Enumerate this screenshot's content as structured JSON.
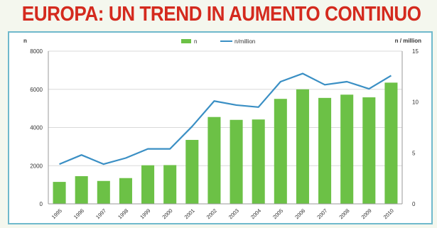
{
  "title": "EUROPA: UN TREND IN AUMENTO CONTINUO",
  "colors": {
    "title": "#d42a1e",
    "bar": "#6cc146",
    "line": "#3a8fc4",
    "frame": "#6fb9cc",
    "axis_text": "#333333"
  },
  "chart_data": {
    "type": "bar",
    "title": "",
    "ylabel": "n",
    "y2label": "n / million",
    "ylim": [
      0,
      8000
    ],
    "y2lim": [
      0,
      15
    ],
    "yticks": [
      "0",
      "2000",
      "4000",
      "6000",
      "8000"
    ],
    "y2ticks": [
      "0",
      "5",
      "10",
      "15"
    ],
    "grid": true,
    "legend_position": "top-center",
    "categories": [
      "1995",
      "1996",
      "1997",
      "1998",
      "1999",
      "2000",
      "2001",
      "2002",
      "2003",
      "2004",
      "2005",
      "2006",
      "2007",
      "2008",
      "2009",
      "2010"
    ],
    "series": [
      {
        "name": "n",
        "type": "bar",
        "axis": "left",
        "values": [
          1150,
          1450,
          1200,
          1350,
          2020,
          2030,
          3350,
          4550,
          4400,
          4420,
          5500,
          6000,
          5550,
          5720,
          5580,
          6350
        ]
      },
      {
        "name": "n/million",
        "type": "line",
        "axis": "right",
        "values": [
          3.9,
          4.8,
          3.9,
          4.5,
          5.4,
          5.4,
          7.6,
          10.1,
          9.7,
          9.5,
          12.0,
          12.8,
          11.7,
          12.0,
          11.3,
          12.6
        ]
      }
    ]
  }
}
